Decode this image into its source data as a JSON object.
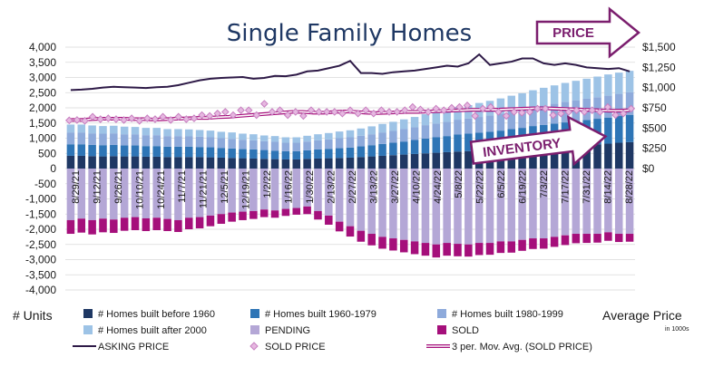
{
  "chart_data": {
    "type": "bar",
    "title": "Single Family Homes",
    "left_axis_label": "# Units",
    "right_axis_label": "Average Price",
    "right_axis_sub": "in 1000s",
    "left_ticks": [
      "4,000",
      "3,500",
      "3,000",
      "2,500",
      "2,000",
      "1,500",
      "1,000",
      "500",
      "0",
      "-500",
      "-1,000",
      "-1,500",
      "-2,000",
      "-2,500",
      "-3,000",
      "-3,500",
      "-4,000"
    ],
    "right_ticks": [
      "$1,500",
      "$1,250",
      "$1,000",
      "$750",
      "$500",
      "$250",
      "$0"
    ],
    "ylim": [
      -4000,
      4000
    ],
    "y2lim": [
      0,
      1500
    ],
    "x_tick_labels": [
      "8/29/21",
      "9/12/21",
      "9/26/21",
      "10/10/21",
      "10/24/21",
      "11/7/21",
      "11/21/21",
      "12/5/21",
      "12/19/21",
      "1/2/22",
      "1/16/22",
      "1/30/22",
      "2/13/22",
      "2/27/22",
      "3/13/22",
      "3/27/22",
      "4/10/22",
      "4/24/22",
      "5/8/22",
      "5/22/22",
      "6/5/22",
      "6/19/22",
      "7/3/22",
      "7/17/22",
      "7/31/22",
      "8/14/22",
      "8/28/22"
    ],
    "series": [
      {
        "name": "# Homes built before 1960",
        "color": "#1f3864",
        "kind": "bar",
        "values": [
          420,
          420,
          410,
          400,
          410,
          400,
          400,
          390,
          390,
          380,
          380,
          380,
          380,
          370,
          360,
          350,
          340,
          330,
          320,
          310,
          300,
          300,
          320,
          330,
          340,
          350,
          360,
          380,
          400,
          420,
          440,
          460,
          480,
          500,
          520,
          540,
          560,
          570,
          580,
          590,
          610,
          630,
          650,
          680,
          700,
          720,
          740,
          760,
          780,
          800,
          820,
          850,
          870
        ]
      },
      {
        "name": "# Homes built 1960-1979",
        "color": "#2e75b6",
        "kind": "bar",
        "values": [
          380,
          380,
          370,
          370,
          370,
          360,
          360,
          350,
          350,
          340,
          340,
          340,
          330,
          330,
          320,
          310,
          300,
          300,
          290,
          280,
          270,
          270,
          280,
          300,
          310,
          320,
          330,
          350,
          370,
          390,
          410,
          430,
          460,
          490,
          510,
          530,
          560,
          580,
          600,
          620,
          640,
          670,
          690,
          720,
          740,
          760,
          780,
          800,
          820,
          840,
          860,
          880,
          900
        ]
      },
      {
        "name": "# Homes built 1980-1999",
        "color": "#8eaadb",
        "kind": "bar",
        "values": [
          390,
          390,
          380,
          380,
          380,
          370,
          370,
          360,
          360,
          350,
          350,
          340,
          340,
          330,
          320,
          320,
          310,
          300,
          290,
          290,
          280,
          280,
          290,
          300,
          310,
          330,
          340,
          350,
          360,
          380,
          390,
          410,
          420,
          440,
          450,
          470,
          490,
          500,
          520,
          540,
          560,
          580,
          600,
          620,
          640,
          660,
          680,
          690,
          700,
          710,
          720,
          730,
          740
        ]
      },
      {
        "name": "# Homes built after 2000",
        "color": "#9dc3e6",
        "kind": "bar",
        "values": [
          260,
          260,
          260,
          250,
          250,
          250,
          240,
          240,
          240,
          230,
          230,
          230,
          220,
          220,
          210,
          210,
          200,
          200,
          190,
          190,
          180,
          180,
          190,
          200,
          210,
          220,
          230,
          240,
          260,
          280,
          300,
          320,
          340,
          360,
          380,
          400,
          420,
          440,
          460,
          480,
          500,
          520,
          540,
          560,
          580,
          600,
          620,
          640,
          660,
          680,
          700,
          700,
          710
        ]
      },
      {
        "name": "PENDING",
        "color": "#b4a7d6",
        "kind": "bar",
        "values": [
          -1700,
          -1650,
          -1700,
          -1650,
          -1680,
          -1620,
          -1600,
          -1640,
          -1620,
          -1660,
          -1700,
          -1620,
          -1600,
          -1550,
          -1500,
          -1450,
          -1420,
          -1400,
          -1350,
          -1380,
          -1330,
          -1300,
          -1250,
          -1400,
          -1550,
          -1750,
          -1900,
          -2050,
          -2150,
          -2250,
          -2300,
          -2350,
          -2400,
          -2450,
          -2500,
          -2450,
          -2480,
          -2500,
          -2450,
          -2450,
          -2400,
          -2400,
          -2350,
          -2300,
          -2300,
          -2250,
          -2200,
          -2150,
          -2150,
          -2150,
          -2100,
          -2150,
          -2150
        ]
      },
      {
        "name": "SOLD",
        "color": "#a50f7b",
        "kind": "bar",
        "values": [
          -450,
          -460,
          -470,
          -450,
          -440,
          -430,
          -430,
          -420,
          -410,
          -400,
          -390,
          -380,
          -370,
          -350,
          -320,
          -300,
          -280,
          -260,
          -250,
          -240,
          -230,
          -220,
          -250,
          -280,
          -300,
          -320,
          -340,
          -360,
          -380,
          -390,
          -400,
          -410,
          -420,
          -420,
          -430,
          -420,
          -410,
          -400,
          -400,
          -390,
          -380,
          -370,
          -360,
          -350,
          -340,
          -330,
          -320,
          -310,
          -300,
          -290,
          -280,
          -270,
          -260
        ]
      },
      {
        "name": "ASKING PRICE",
        "color": "#2e1a47",
        "kind": "line",
        "axis": "right",
        "values": [
          970,
          975,
          985,
          1000,
          1010,
          1005,
          1000,
          995,
          1005,
          1010,
          1030,
          1060,
          1090,
          1110,
          1120,
          1125,
          1130,
          1110,
          1120,
          1145,
          1140,
          1160,
          1200,
          1210,
          1240,
          1270,
          1330,
          1180,
          1180,
          1170,
          1190,
          1200,
          1210,
          1230,
          1250,
          1270,
          1260,
          1300,
          1410,
          1280,
          1300,
          1320,
          1360,
          1360,
          1300,
          1280,
          1300,
          1280,
          1250,
          1240,
          1230,
          1240,
          1200
        ]
      },
      {
        "name": "SOLD PRICE",
        "color": "#c77fc0",
        "kind": "marker",
        "axis": "right",
        "values": [
          595,
          600,
          590,
          640,
          610,
          620,
          610,
          600,
          620,
          590,
          620,
          610,
          640,
          600,
          640,
          610,
          620,
          660,
          650,
          680,
          700,
          660,
          720,
          720,
          660,
          800,
          700,
          720,
          660,
          700,
          650,
          720,
          700,
          700,
          700,
          680,
          720,
          680,
          720,
          680,
          720,
          700,
          700,
          720,
          760,
          730,
          700,
          740,
          720,
          750,
          760,
          780,
          650,
          740,
          760,
          700,
          650,
          700,
          690,
          700,
          740,
          740,
          660,
          680,
          700,
          720,
          700,
          720,
          700,
          760,
          660,
          680,
          740
        ]
      },
      {
        "name": "3 per. Mov. Avg. (SOLD PRICE)",
        "color": "#a50f7b",
        "kind": "band",
        "axis": "right",
        "values": [
          600,
          600,
          610,
          615,
          615,
          615,
          610,
          610,
          605,
          610,
          615,
          620,
          625,
          625,
          635,
          640,
          650,
          660,
          670,
          680,
          690,
          700,
          700,
          690,
          690,
          700,
          705,
          700,
          690,
          685,
          690,
          695,
          700,
          700,
          705,
          710,
          715,
          720,
          725,
          725,
          725,
          730,
          735,
          740,
          745,
          745,
          740,
          735,
          730,
          725,
          720,
          715,
          715,
          720
        ]
      }
    ],
    "annotations": [
      "PRICE",
      "INVENTORY"
    ],
    "legend": "bottom"
  }
}
